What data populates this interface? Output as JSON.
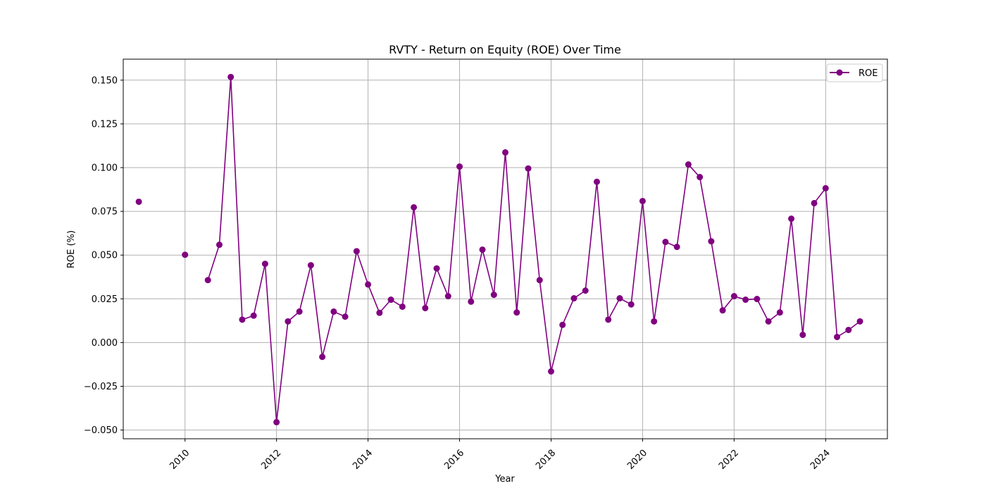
{
  "chart_data": {
    "type": "line",
    "title": "RVTY - Return on Equity (ROE) Over Time",
    "xlabel": "Year",
    "ylabel": "ROE (%)",
    "xlim": [
      2008.65,
      2025.35
    ],
    "ylim": [
      -0.055,
      0.162
    ],
    "x_ticks": [
      "2010",
      "2012",
      "2014",
      "2016",
      "2018",
      "2020",
      "2022",
      "2024"
    ],
    "y_ticks": [
      "−0.050",
      "−0.025",
      "0.000",
      "0.025",
      "0.050",
      "0.075",
      "0.100",
      "0.125",
      "0.150"
    ],
    "grid": true,
    "legend_position": "top-right",
    "line_color": "#800080",
    "series": [
      {
        "name": "ROE",
        "points": [
          {
            "x": 2008.99,
            "y": 0.0805,
            "connect": false
          },
          {
            "x": 2010.0,
            "y": 0.0502,
            "connect": false
          },
          {
            "x": 2010.5,
            "y": 0.0357,
            "connect": false
          },
          {
            "x": 2010.75,
            "y": 0.0559
          },
          {
            "x": 2011.0,
            "y": 0.1518
          },
          {
            "x": 2011.25,
            "y": 0.0131
          },
          {
            "x": 2011.5,
            "y": 0.0154
          },
          {
            "x": 2011.75,
            "y": 0.045
          },
          {
            "x": 2012.0,
            "y": -0.0455
          },
          {
            "x": 2012.25,
            "y": 0.0121
          },
          {
            "x": 2012.5,
            "y": 0.0177
          },
          {
            "x": 2012.75,
            "y": 0.0442
          },
          {
            "x": 2013.0,
            "y": -0.0082
          },
          {
            "x": 2013.25,
            "y": 0.0177
          },
          {
            "x": 2013.5,
            "y": 0.0148
          },
          {
            "x": 2013.75,
            "y": 0.0522
          },
          {
            "x": 2014.0,
            "y": 0.0332
          },
          {
            "x": 2014.25,
            "y": 0.017
          },
          {
            "x": 2014.5,
            "y": 0.0245
          },
          {
            "x": 2014.75,
            "y": 0.0205
          },
          {
            "x": 2015.0,
            "y": 0.0773
          },
          {
            "x": 2015.25,
            "y": 0.0197
          },
          {
            "x": 2015.5,
            "y": 0.0424
          },
          {
            "x": 2015.75,
            "y": 0.0265
          },
          {
            "x": 2016.0,
            "y": 0.1006
          },
          {
            "x": 2016.25,
            "y": 0.0234
          },
          {
            "x": 2016.5,
            "y": 0.0531
          },
          {
            "x": 2016.75,
            "y": 0.0273
          },
          {
            "x": 2017.0,
            "y": 0.1087
          },
          {
            "x": 2017.25,
            "y": 0.0172
          },
          {
            "x": 2017.5,
            "y": 0.0995
          },
          {
            "x": 2017.75,
            "y": 0.0357
          },
          {
            "x": 2018.0,
            "y": -0.0165
          },
          {
            "x": 2018.25,
            "y": 0.0101
          },
          {
            "x": 2018.5,
            "y": 0.0253
          },
          {
            "x": 2018.75,
            "y": 0.0297
          },
          {
            "x": 2019.0,
            "y": 0.0919
          },
          {
            "x": 2019.25,
            "y": 0.0131
          },
          {
            "x": 2019.5,
            "y": 0.0253
          },
          {
            "x": 2019.75,
            "y": 0.0218
          },
          {
            "x": 2020.0,
            "y": 0.0809
          },
          {
            "x": 2020.25,
            "y": 0.0121
          },
          {
            "x": 2020.5,
            "y": 0.0575
          },
          {
            "x": 2020.75,
            "y": 0.0547
          },
          {
            "x": 2021.0,
            "y": 0.1018
          },
          {
            "x": 2021.25,
            "y": 0.0946
          },
          {
            "x": 2021.5,
            "y": 0.0579
          },
          {
            "x": 2021.75,
            "y": 0.0184
          },
          {
            "x": 2022.0,
            "y": 0.0265
          },
          {
            "x": 2022.25,
            "y": 0.0245
          },
          {
            "x": 2022.5,
            "y": 0.0249
          },
          {
            "x": 2022.75,
            "y": 0.0121
          },
          {
            "x": 2023.0,
            "y": 0.0172
          },
          {
            "x": 2023.25,
            "y": 0.0708
          },
          {
            "x": 2023.5,
            "y": 0.0044
          },
          {
            "x": 2023.75,
            "y": 0.0797
          },
          {
            "x": 2024.0,
            "y": 0.0882
          },
          {
            "x": 2024.25,
            "y": 0.0032
          },
          {
            "x": 2024.5,
            "y": 0.0072
          },
          {
            "x": 2024.75,
            "y": 0.0121
          }
        ]
      }
    ]
  }
}
